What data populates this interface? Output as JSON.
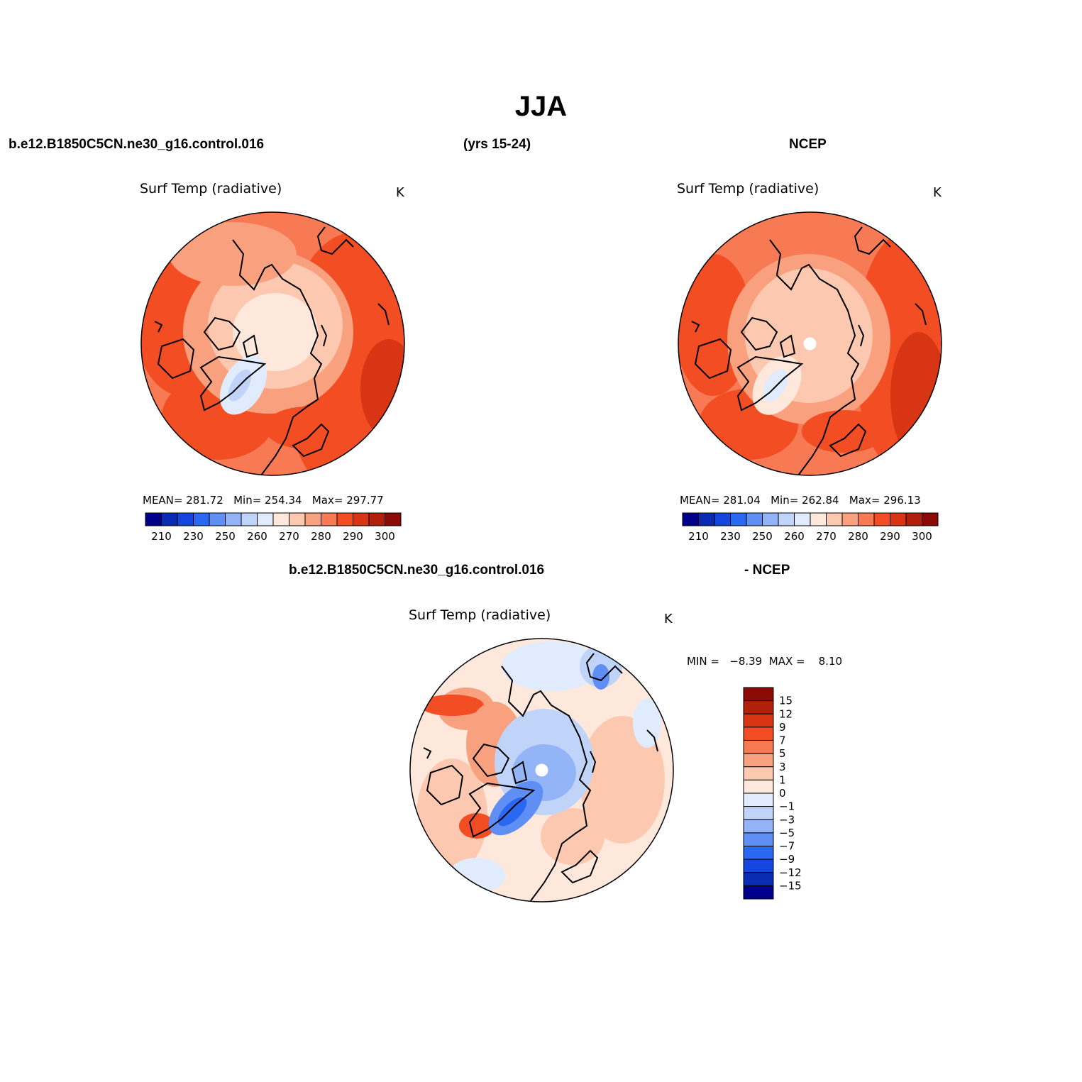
{
  "figure": {
    "season": "JJA",
    "case_name": "b.e12.B1850C5CN.ne30_g16.control.016",
    "years": "(yrs 15-24)",
    "obs_name": "NCEP",
    "diff_case": "b.e12.B1850C5CN.ne30_g16.control.016",
    "diff_obs": "- NCEP"
  },
  "panels": {
    "model": {
      "title": "Surf Temp (radiative)",
      "units": "K",
      "mean_label": "MEAN=",
      "mean": "281.72",
      "min_label": "Min=",
      "min": "254.34",
      "max_label": "Max=",
      "max": "297.77"
    },
    "obs": {
      "title": "Surf Temp (radiative)",
      "units": "K",
      "mean_label": "MEAN=",
      "mean": "281.04",
      "min_label": "Min=",
      "min": "262.84",
      "max_label": "Max=",
      "max": "296.13"
    },
    "diff": {
      "title": "Surf Temp (radiative)",
      "units": "K",
      "min_label": "MIN =",
      "min": "−8.39",
      "max_label": "MAX =",
      "max": "8.10"
    }
  },
  "colorbars": {
    "absolute": {
      "labels": [
        "210",
        "230",
        "250",
        "260",
        "270",
        "280",
        "290",
        "300"
      ],
      "colors": [
        "#00008b",
        "#0a2cb4",
        "#1546de",
        "#2a68f2",
        "#5f8ff4",
        "#93b5f7",
        "#c0d4f9",
        "#e0ecfd",
        "#fee8dc",
        "#fcc8b0",
        "#f9a17e",
        "#f77a54",
        "#f24d23",
        "#d83515",
        "#b2200c",
        "#8b0a06"
      ]
    },
    "difference": {
      "labels": [
        "15",
        "12",
        "9",
        "7",
        "5",
        "3",
        "1",
        "0",
        "−1",
        "−3",
        "−5",
        "−7",
        "−9",
        "−12",
        "−15"
      ],
      "colors": [
        "#8b0a06",
        "#b2200c",
        "#d83515",
        "#f24d23",
        "#f77a54",
        "#f9a17e",
        "#fcc8b0",
        "#fee8dc",
        "#e0ecfd",
        "#c0d4f9",
        "#93b5f7",
        "#5f8ff4",
        "#2a68f2",
        "#1546de",
        "#0a2cb4",
        "#00008b"
      ]
    }
  }
}
